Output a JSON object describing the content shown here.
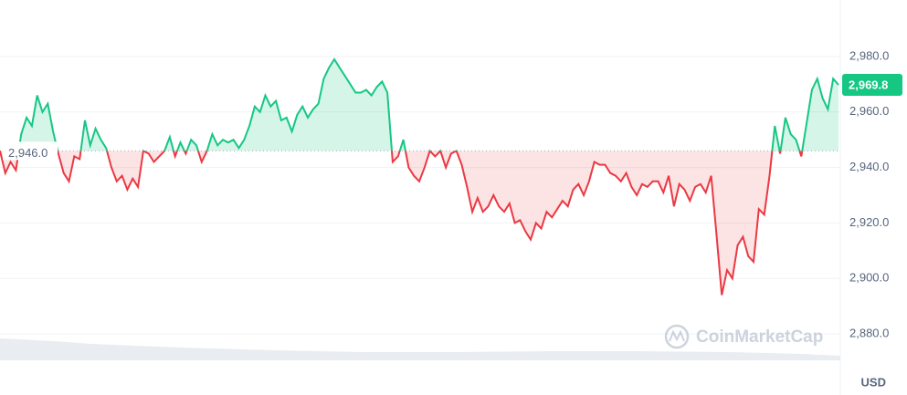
{
  "chart_data": {
    "type": "line",
    "values": [
      2946,
      2938,
      2942,
      2939,
      2952,
      2958,
      2955,
      2966,
      2960,
      2963,
      2953,
      2945,
      2938,
      2935,
      2944,
      2943,
      2957,
      2948,
      2954,
      2950,
      2947,
      2940,
      2935,
      2937,
      2932,
      2936,
      2933,
      2946,
      2945,
      2942,
      2944,
      2946,
      2951,
      2944,
      2949,
      2945,
      2950,
      2948,
      2942,
      2946,
      2952,
      2948,
      2950,
      2949,
      2950,
      2947,
      2950,
      2955,
      2962,
      2960,
      2966,
      2962,
      2964,
      2957,
      2958,
      2953,
      2959,
      2962,
      2958,
      2961,
      2963,
      2972,
      2976,
      2979,
      2976,
      2973,
      2970,
      2967,
      2967,
      2968,
      2966,
      2969,
      2971,
      2967,
      2942,
      2944,
      2950,
      2940,
      2937,
      2935,
      2940,
      2946,
      2944,
      2946,
      2940,
      2945,
      2946,
      2941,
      2933,
      2924,
      2929,
      2924,
      2926,
      2930,
      2926,
      2924,
      2927,
      2920,
      2921,
      2917,
      2914,
      2920,
      2918,
      2924,
      2922,
      2925,
      2928,
      2926,
      2932,
      2934,
      2930,
      2935,
      2942,
      2941,
      2941,
      2938,
      2937,
      2935,
      2938,
      2933,
      2930,
      2934,
      2933,
      2935,
      2935,
      2931,
      2937,
      2926,
      2934,
      2932,
      2928,
      2933,
      2934,
      2931,
      2937,
      2916,
      2894,
      2903,
      2900,
      2912,
      2915,
      2908,
      2906,
      2925,
      2923,
      2937,
      2955,
      2945,
      2958,
      2952,
      2950,
      2944,
      2956,
      2968,
      2972,
      2965,
      2961,
      2972,
      2969.8
    ],
    "colors": {
      "up": "#16c784",
      "down": "#ea3943"
    },
    "baseline": {
      "value": 2946,
      "label": "2,946.0"
    },
    "current_price": {
      "value": 2969.8,
      "label": "2,969.8"
    },
    "ylim": [
      2880,
      2980
    ],
    "yticks": [
      {
        "value": 2880,
        "label": "2,880.0"
      },
      {
        "value": 2900,
        "label": "2,900.0"
      },
      {
        "value": 2920,
        "label": "2,920.0"
      },
      {
        "value": 2940,
        "label": "2,940.0"
      },
      {
        "value": 2960,
        "label": "2,960.0"
      },
      {
        "value": 2980,
        "label": "2,980.0"
      }
    ],
    "grid": true,
    "watermark": "CoinMarketCap",
    "currency": "USD"
  }
}
